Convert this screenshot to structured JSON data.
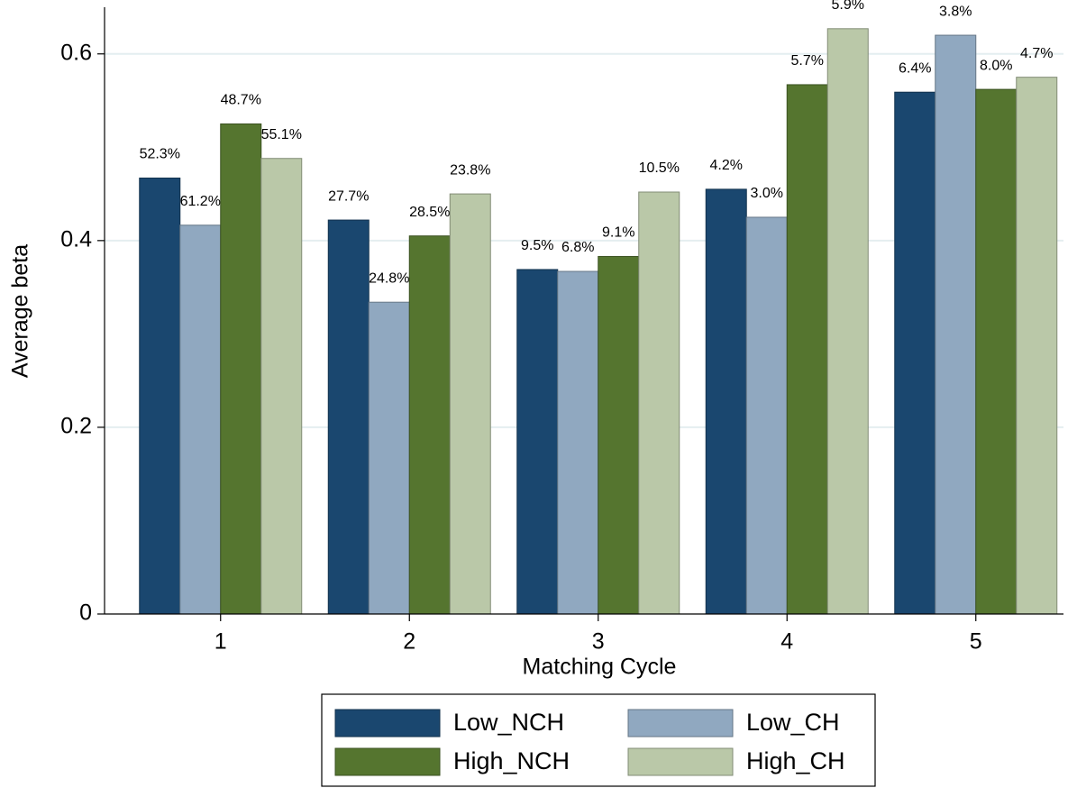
{
  "chart_data": {
    "type": "bar",
    "xlabel": "Matching Cycle",
    "ylabel": "Average beta",
    "categories": [
      "1",
      "2",
      "3",
      "4",
      "5"
    ],
    "series": [
      {
        "name": "Low_NCH",
        "color": "#1a476f",
        "values": [
          0.467,
          0.422,
          0.369,
          0.455,
          0.559
        ],
        "bar_labels": [
          "52.3%",
          "27.7%",
          "9.5%",
          "4.2%",
          "6.4%"
        ]
      },
      {
        "name": "Low_CH",
        "color": "#90a8c0",
        "values": [
          0.4165,
          0.334,
          0.367,
          0.425,
          0.62
        ],
        "bar_labels": [
          "61.2%",
          "24.8%",
          "6.8%",
          "3.0%",
          "3.8%"
        ]
      },
      {
        "name": "High_NCH",
        "color": "#55752f",
        "values": [
          0.525,
          0.405,
          0.383,
          0.567,
          0.562
        ],
        "bar_labels": [
          "48.7%",
          "28.5%",
          "9.1%",
          "5.7%",
          "8.0%"
        ]
      },
      {
        "name": "High_CH",
        "color": "#bac8a8",
        "values": [
          0.488,
          0.45,
          0.452,
          0.627,
          0.575
        ],
        "bar_labels": [
          "55.1%",
          "23.8%",
          "10.5%",
          "5.9%",
          "4.7%"
        ]
      }
    ],
    "ylim": [
      0,
      0.65
    ],
    "yticks": [
      0,
      0.2,
      0.4,
      0.6
    ],
    "grid": true,
    "legend": "bottom"
  }
}
